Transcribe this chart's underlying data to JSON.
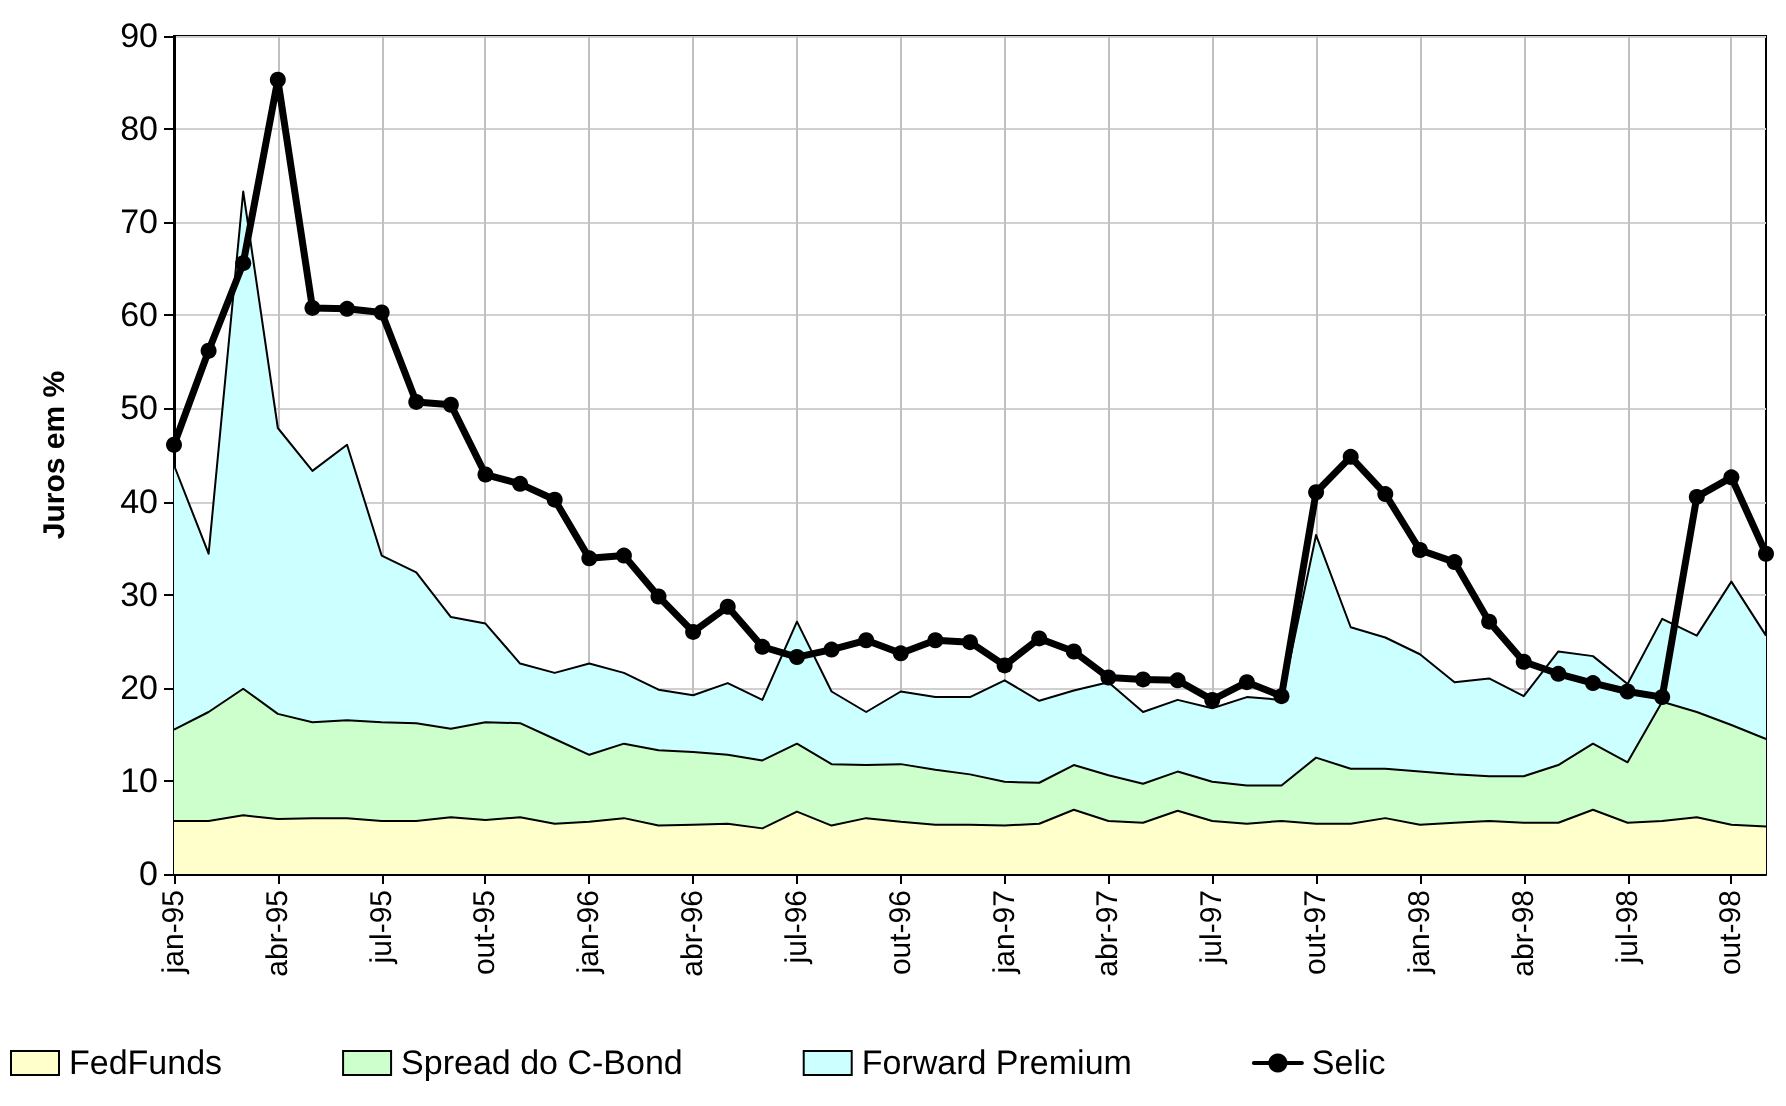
{
  "chart_data": {
    "type": "area",
    "ylabel": "Juros em %",
    "stacked": true,
    "grid": true,
    "legend": "bottom",
    "marker": "none",
    "line_style": "solid",
    "ylim": [
      0,
      90
    ],
    "yticks": [
      0,
      10,
      20,
      30,
      40,
      50,
      60,
      70,
      80,
      90
    ],
    "categories": [
      "jan-95",
      null,
      null,
      "abr-95",
      null,
      null,
      "jul-95",
      null,
      null,
      "out-95",
      null,
      null,
      "jan-96",
      null,
      null,
      "abr-96",
      null,
      null,
      "jul-96",
      null,
      null,
      "out-96",
      null,
      null,
      "jan-97",
      null,
      null,
      "abr-97",
      null,
      null,
      "jul-97",
      null,
      null,
      "out-97",
      null,
      null,
      "jan-98",
      null,
      null,
      "abr-98",
      null,
      null,
      "jul-98",
      null,
      null,
      "out-98",
      null
    ],
    "series": [
      {
        "name": "FedFunds",
        "color": "#ffffcc",
        "values": [
          5.7,
          5.7,
          6.3,
          5.9,
          6.0,
          6.0,
          5.7,
          5.7,
          6.1,
          5.8,
          6.1,
          5.4,
          5.6,
          6.0,
          5.2,
          5.3,
          5.4,
          4.9,
          6.7,
          5.2,
          6.0,
          5.6,
          5.3,
          5.3,
          5.2,
          5.4,
          6.9,
          5.7,
          5.5,
          6.8,
          5.7,
          5.4,
          5.7,
          5.4,
          5.4,
          6.0,
          5.3,
          5.5,
          5.7,
          5.5,
          5.5,
          6.9,
          5.5,
          5.7,
          6.1,
          5.3,
          5.1
        ]
      },
      {
        "name": "Spread do C-Bond",
        "color": "#ccffcc",
        "values": [
          9.8,
          11.7,
          13.6,
          11.3,
          10.3,
          10.5,
          10.6,
          10.5,
          9.5,
          10.5,
          10.1,
          9.1,
          7.2,
          8.0,
          8.1,
          7.8,
          7.4,
          7.3,
          7.3,
          6.6,
          5.7,
          6.2,
          5.9,
          5.4,
          4.7,
          4.4,
          4.8,
          4.9,
          4.2,
          4.2,
          4.2,
          4.1,
          3.8,
          7.1,
          5.9,
          5.3,
          5.7,
          5.2,
          4.8,
          5.0,
          6.2,
          7.1,
          6.5,
          12.8,
          11.3,
          10.7,
          9.4
        ]
      },
      {
        "name": "Forward Premium",
        "color": "#ccffff",
        "values": [
          28.4,
          17.0,
          53.4,
          30.7,
          27.0,
          29.6,
          17.9,
          16.2,
          12.0,
          10.6,
          6.4,
          7.1,
          9.8,
          7.6,
          6.5,
          6.1,
          7.7,
          6.5,
          13.1,
          7.8,
          5.7,
          7.8,
          7.8,
          8.3,
          10.9,
          8.8,
          8.0,
          10.0,
          7.7,
          7.7,
          7.9,
          9.5,
          9.2,
          23.9,
          15.2,
          14.1,
          12.6,
          9.9,
          10.5,
          8.6,
          12.2,
          9.4,
          8.4,
          8.9,
          8.2,
          15.4,
          11.1
        ]
      },
      {
        "name": "Selic",
        "type": "line",
        "marker": "circle",
        "color": "#000000",
        "values": [
          46.1,
          56.2,
          65.6,
          85.3,
          60.8,
          60.7,
          60.3,
          50.7,
          50.4,
          42.9,
          41.9,
          40.2,
          33.9,
          34.2,
          29.8,
          26.0,
          28.7,
          24.4,
          23.3,
          24.1,
          25.1,
          23.7,
          25.1,
          24.9,
          22.4,
          25.3,
          23.9,
          21.1,
          20.9,
          20.8,
          18.7,
          20.6,
          19.1,
          41.0,
          44.8,
          40.8,
          34.8,
          33.5,
          27.1,
          22.8,
          21.5,
          20.5,
          19.6,
          19.0,
          40.5,
          42.6,
          34.4
        ]
      }
    ]
  }
}
